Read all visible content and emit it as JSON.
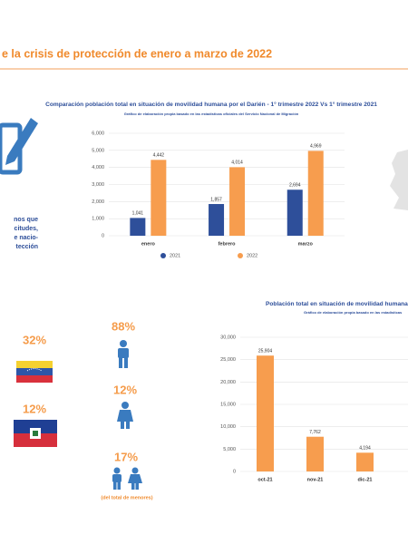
{
  "header": {
    "title": "e la crisis de protección de enero a marzo de 2022"
  },
  "side_text": [
    "nos que",
    "citudes,",
    "e nacio-",
    "tección"
  ],
  "stats": {
    "nationality": [
      "32%",
      "12%"
    ],
    "minors": [
      "88%",
      "12%",
      "17%"
    ],
    "minors_note": "(del total de menores)"
  },
  "chart_data": [
    {
      "type": "bar",
      "title": "Comparación población total en situación de movilidad humana por el Darién - 1° trimestre 2022 Vs  1° trimestre 2021",
      "subtitle": "Gráfico de elaboración propia basado en las estadísticas oficiales del Servicio Nacional de Migración",
      "categories": [
        "enero",
        "febrero",
        "marzo"
      ],
      "series": [
        {
          "name": "2021",
          "color": "#2e4f9a",
          "values": [
            1041,
            1857,
            2694
          ],
          "value_labels": [
            "1,041",
            "1,857",
            "2,694"
          ]
        },
        {
          "name": "2022",
          "color": "#f79d4e",
          "values": [
            4442,
            4014,
            4969
          ],
          "value_labels": [
            "4,442",
            "4,014",
            "4,969"
          ]
        }
      ],
      "ylim": [
        0,
        6000
      ],
      "yticks": [
        0,
        {
          "value": 1000,
          "label": "1,000"
        },
        {
          "value": 2000,
          "label": "2,000"
        },
        {
          "value": 3000,
          "label": "3,000"
        },
        {
          "value": 4000,
          "label": "4,000"
        },
        {
          "value": 5000,
          "label": "5,000"
        },
        {
          "value": 6000,
          "label": "6,000"
        }
      ],
      "grid": true,
      "legend": "bottom"
    },
    {
      "type": "bar",
      "title": "Población total en situación de movilidad humana p",
      "subtitle": "Gráfico de elaboración propia basado en las estadísticas",
      "categories": [
        "oct-21",
        "nov-21",
        "dic-21"
      ],
      "values": [
        25904,
        7762,
        4194
      ],
      "value_labels": [
        "25,904",
        "7,762",
        "4,194"
      ],
      "color": "#f79d4e",
      "ylim": [
        0,
        30000
      ],
      "yticks": [
        0,
        {
          "value": 5000,
          "label": "5,000"
        },
        {
          "value": 10000,
          "label": "10,000"
        },
        {
          "value": 15000,
          "label": "15,000"
        },
        {
          "value": 20000,
          "label": "20,000"
        },
        {
          "value": 25000,
          "label": "25,000"
        },
        {
          "value": 30000,
          "label": "30,000"
        }
      ],
      "grid": true
    }
  ]
}
